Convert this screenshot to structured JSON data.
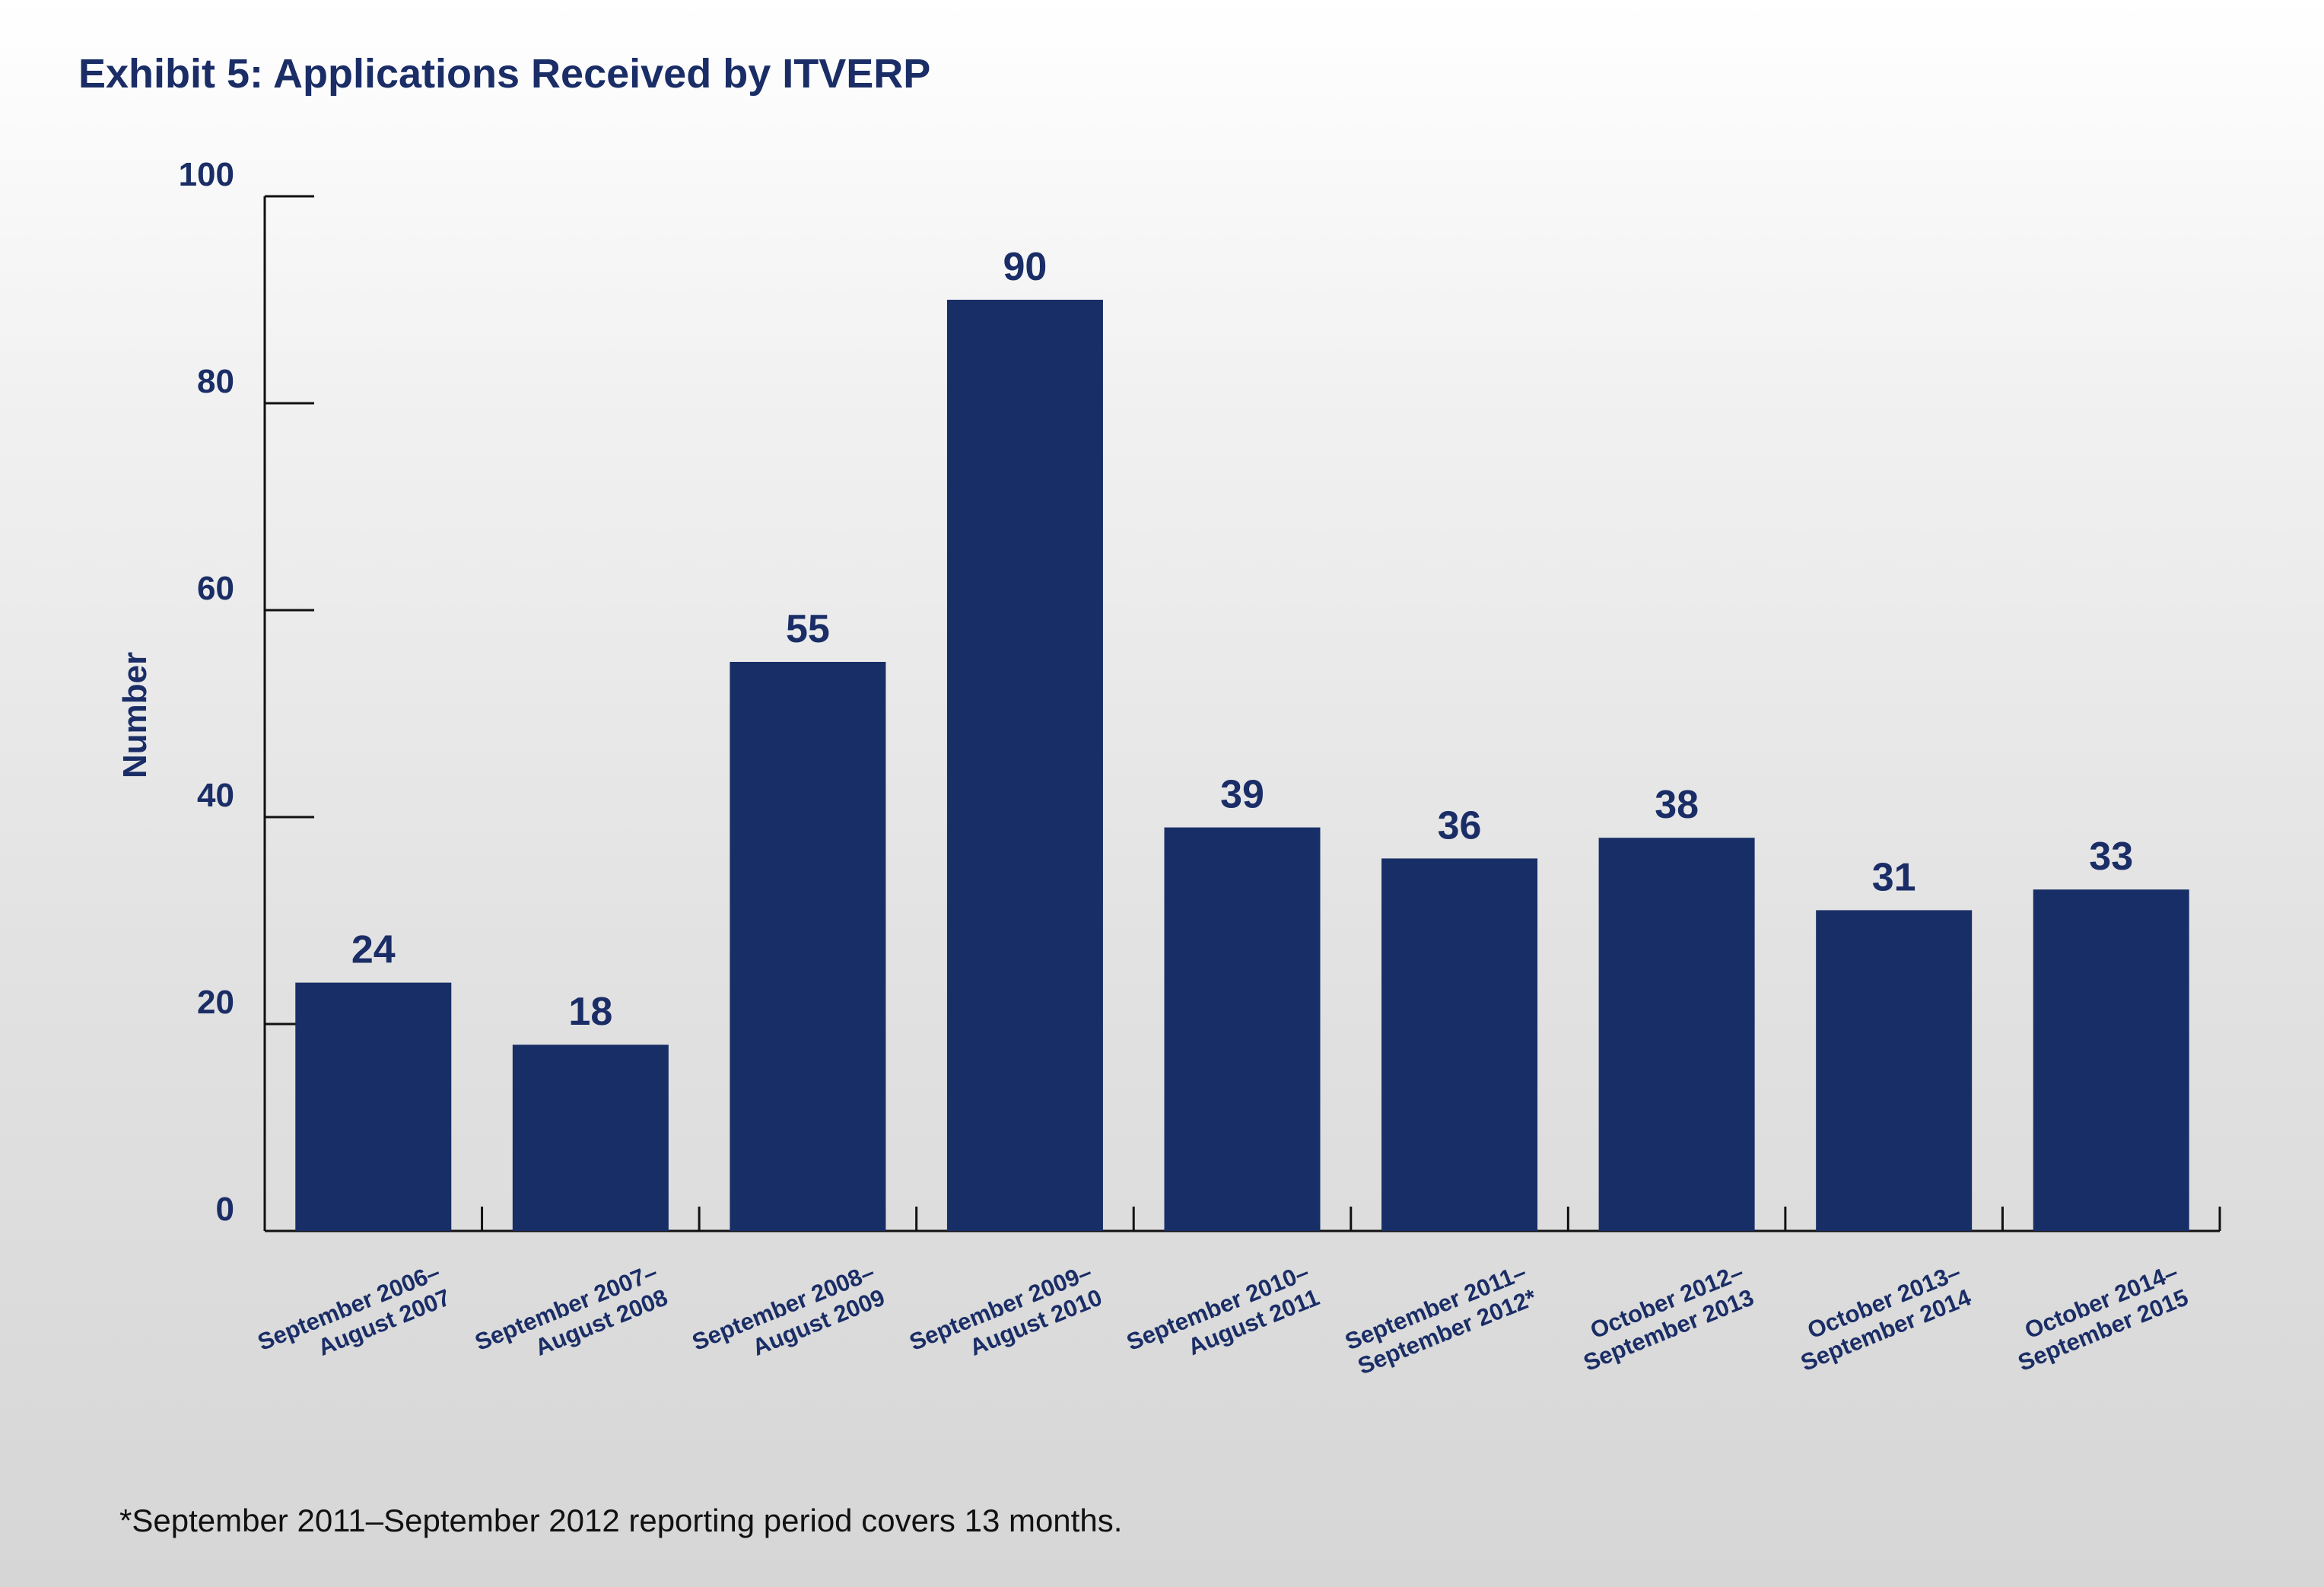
{
  "chart_data": {
    "type": "bar",
    "title": "Exhibit 5: Applications Received by ITVERP",
    "ylabel": "Number",
    "xlabel": "",
    "ylim": [
      0,
      100
    ],
    "yticks": [
      0,
      20,
      40,
      60,
      80,
      100
    ],
    "categories": [
      [
        "September 2006–",
        "August 2007"
      ],
      [
        "September 2007–",
        "August 2008"
      ],
      [
        "September 2008–",
        "August 2009"
      ],
      [
        "September 2009–",
        "August 2010"
      ],
      [
        "September 2010–",
        "August 2011"
      ],
      [
        "September 2011–",
        "September 2012*"
      ],
      [
        "October 2012–",
        "September 2013"
      ],
      [
        "October 2013–",
        "September 2014"
      ],
      [
        "October 2014–",
        "September 2015"
      ]
    ],
    "values": [
      24,
      18,
      55,
      90,
      39,
      36,
      38,
      31,
      33
    ],
    "grid": false,
    "bar_color": "#182e66",
    "text_color": "#1a2d66"
  },
  "footnote": "*September 2011–September 2012 reporting period covers 13 months."
}
